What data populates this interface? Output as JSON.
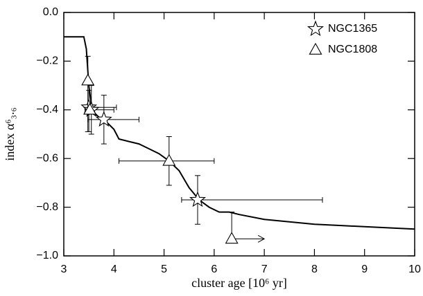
{
  "chart_data": {
    "type": "scatter",
    "xlabel": "cluster age [10⁶ yr]",
    "ylabel": "index α⁶₃.₆",
    "xlim": [
      3,
      10
    ],
    "ylim": [
      -1.0,
      0.0
    ],
    "xticks": [
      3,
      4,
      5,
      6,
      7,
      8,
      9,
      10
    ],
    "yticks": [
      {
        "value": -1.0,
        "label": "−1.0"
      },
      {
        "value": -0.8,
        "label": "−0.8"
      },
      {
        "value": -0.6,
        "label": "−0.6"
      },
      {
        "value": -0.4,
        "label": "−0.4"
      },
      {
        "value": -0.2,
        "label": "−0.2"
      },
      {
        "value": 0.0,
        "label": "0.0"
      }
    ],
    "legend": "upper right",
    "curve": {
      "color": "#000000",
      "x": [
        3,
        3.4,
        3.45,
        3.5,
        3.55,
        3.6,
        3.7,
        3.8,
        3.9,
        4.0,
        4.1,
        4.3,
        4.5,
        4.7,
        4.9,
        5.1,
        5.3,
        5.5,
        5.7,
        5.9,
        6.1,
        6.3,
        6.5,
        7.0,
        7.5,
        8.0,
        8.5,
        9.0,
        9.5,
        10
      ],
      "values": [
        -0.1,
        -0.1,
        -0.15,
        -0.3,
        -0.38,
        -0.41,
        -0.43,
        -0.44,
        -0.46,
        -0.48,
        -0.52,
        -0.53,
        -0.54,
        -0.56,
        -0.58,
        -0.61,
        -0.65,
        -0.72,
        -0.77,
        -0.8,
        -0.82,
        -0.82,
        -0.83,
        -0.85,
        -0.86,
        -0.87,
        -0.875,
        -0.88,
        -0.885,
        -0.89
      ]
    },
    "series": [
      {
        "name": "NGC1365",
        "marker": "star",
        "color": "#000000",
        "x": [
          3.5,
          3.55,
          3.8,
          5.67
        ],
        "values": [
          -0.39,
          -0.4,
          -0.44,
          -0.77
        ],
        "x_min": [
          3.42,
          3.5,
          3.48,
          5.35
        ],
        "x_max": [
          4.05,
          4.0,
          4.5,
          8.16
        ],
        "y_min": [
          -0.49,
          -0.5,
          -0.54,
          -0.87
        ],
        "y_max": [
          -0.32,
          -0.3,
          -0.34,
          -0.67
        ],
        "x_lower_limit_to": [
          null,
          null,
          null,
          null
        ]
      },
      {
        "name": "NGC1808",
        "marker": "triangle",
        "color": "#000000",
        "x": [
          3.48,
          3.52,
          5.1,
          6.35
        ],
        "values": [
          -0.28,
          -0.4,
          -0.61,
          -0.93
        ],
        "x_min": [
          null,
          null,
          4.1,
          null
        ],
        "x_max": [
          null,
          null,
          6.0,
          null
        ],
        "y_min": [
          -0.49,
          null,
          -0.71,
          null
        ],
        "y_max": [
          -0.18,
          null,
          -0.51,
          -0.82
        ],
        "x_lower_limit_to": [
          null,
          null,
          null,
          7.0
        ]
      }
    ]
  }
}
